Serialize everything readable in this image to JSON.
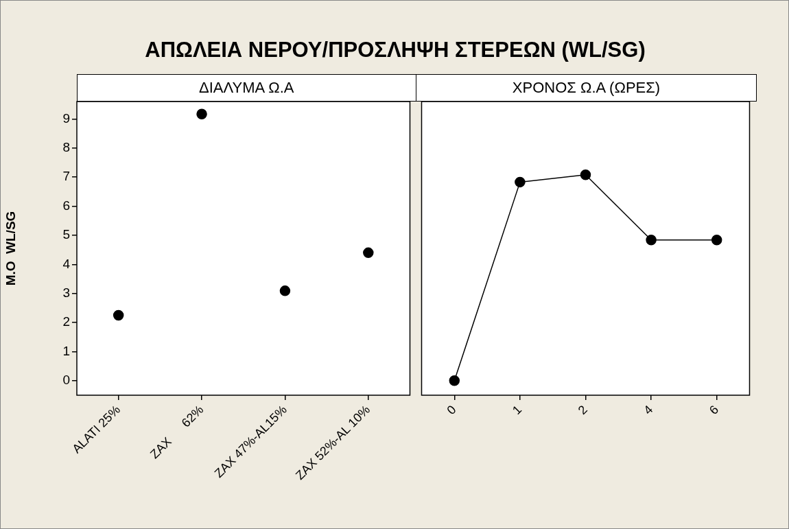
{
  "chart_data": [
    {
      "type": "scatter",
      "title": "ΑΠΩΛΕΙΑ ΝΕΡΟΥ/ΠΡΟΣΛΗΨΗ ΣΤΕΡΕΩΝ (WL/SG)",
      "subtitle": "ΔΙΑΛΥΜΑ Ω.Α",
      "ylabel": "M.O  WL/SG",
      "categories": [
        "ALATI 25%",
        "ZAX      62%",
        "ZAX 47%-AL15%",
        "ZAX 52%-AL 10%"
      ],
      "series": [
        {
          "color": "#000000",
          "values": [
            2.25,
            9.17,
            3.09,
            4.4
          ]
        }
      ],
      "ylim": [
        -0.5,
        9.6
      ],
      "yticks": [
        0,
        1,
        2,
        3,
        4,
        5,
        6,
        7,
        8,
        9
      ],
      "marker": "circle"
    },
    {
      "type": "line",
      "subtitle": "ΧΡΟΝΟΣ Ω.Α (ΩΡΕΣ)",
      "categories": [
        "0",
        "1",
        "2",
        "4",
        "6"
      ],
      "series": [
        {
          "color": "#000000",
          "values": [
            0,
            6.83,
            7.08,
            4.84,
            4.84
          ]
        }
      ],
      "ylim": [
        -0.5,
        9.6
      ],
      "yticks": [
        0,
        1,
        2,
        3,
        4,
        5,
        6,
        7,
        8,
        9
      ],
      "tick_labels": "x",
      "marker": "circle",
      "line_style": "solid"
    }
  ]
}
